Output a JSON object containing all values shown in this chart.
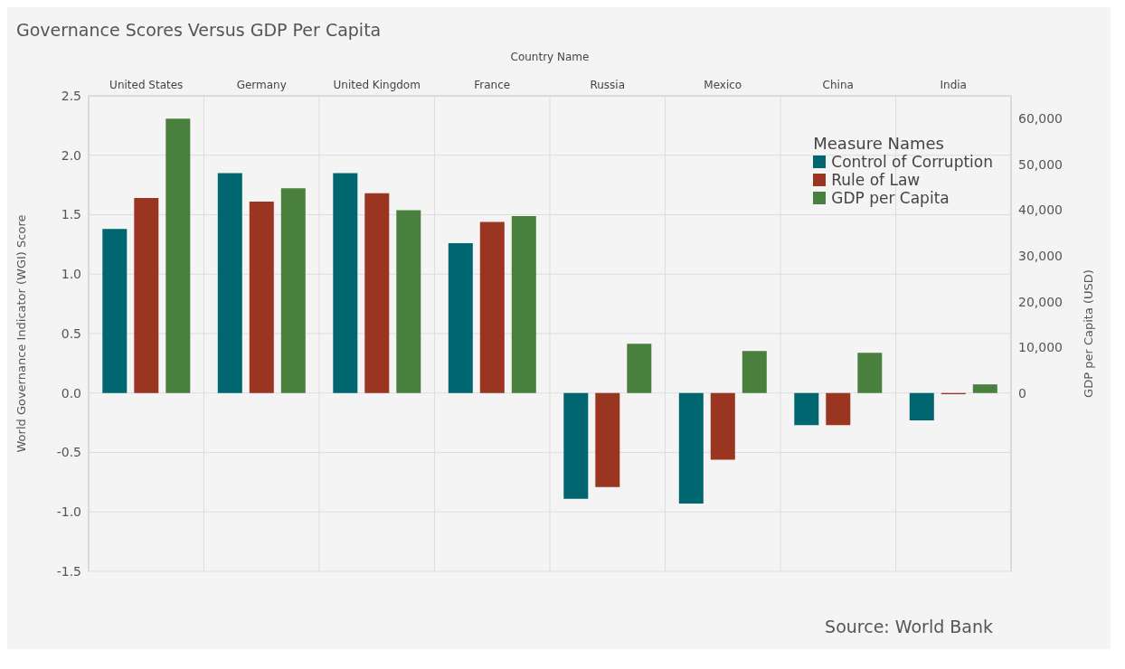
{
  "chart_data": {
    "type": "bar",
    "title": "Governance Scores Versus GDP Per Capita",
    "xlabel": "Country Name",
    "ylabel": "World Governance Indicator (WGI) Score",
    "y2label": "GDP per Capita (USD)",
    "legend_title": "Measure Names",
    "annotations": [
      "Source: World Bank"
    ],
    "categories": [
      "United States",
      "Germany",
      "United Kingdom",
      "France",
      "Russia",
      "Mexico",
      "China",
      "India"
    ],
    "series": [
      {
        "name": "Control of Corruption",
        "color": "#00666f",
        "values": [
          1.38,
          1.85,
          1.85,
          1.26,
          -0.89,
          -0.93,
          -0.27,
          -0.23
        ]
      },
      {
        "name": "Rule of Law",
        "color": "#9a3522",
        "values": [
          1.64,
          1.61,
          1.68,
          1.44,
          -0.79,
          -0.56,
          -0.27,
          -0.01
        ]
      },
      {
        "name": "GDP per Capita",
        "color": "#4a803e",
        "axis": "y2",
        "values": [
          60000,
          44800,
          40000,
          38700,
          10800,
          9200,
          8800,
          1900
        ]
      }
    ],
    "ylim": [
      -1.5,
      2.5
    ],
    "yticks": [
      {
        "value": -1.5,
        "label": "-1.5"
      },
      {
        "value": -1,
        "label": "-1.0"
      },
      {
        "value": -0.5,
        "label": "-0.5"
      },
      {
        "value": 0,
        "label": "0.0"
      },
      {
        "value": 0.5,
        "label": "0.5"
      },
      {
        "value": 1,
        "label": "1.0"
      },
      {
        "value": 1.5,
        "label": "1.5"
      },
      {
        "value": 2,
        "label": "2.0"
      },
      {
        "value": 2.5,
        "label": "2.5"
      }
    ],
    "y2lim": [
      -39000,
      65000
    ],
    "y2ticks": [
      0,
      {
        "value": 10000,
        "label": "10,000"
      },
      {
        "value": 20000,
        "label": "20,000"
      },
      {
        "value": 30000,
        "label": "30,000"
      },
      {
        "value": 40000,
        "label": "40,000"
      },
      {
        "value": 50000,
        "label": "50,000"
      },
      {
        "value": 60000,
        "label": "60,000"
      }
    ],
    "grid": true,
    "legend": "top right"
  }
}
